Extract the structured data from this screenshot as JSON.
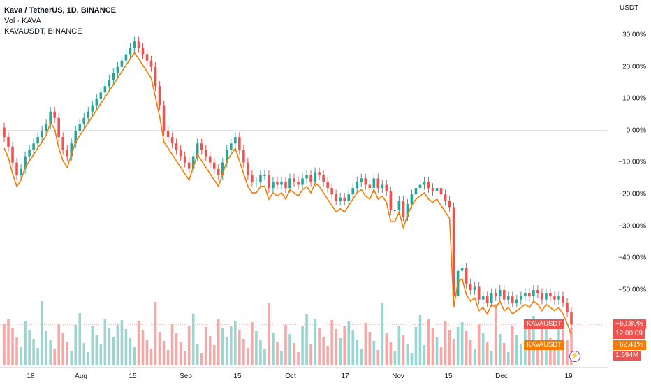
{
  "legend": {
    "title": "Kava / TetherUS, 1D, BINANCE",
    "volume_label": "Vol · KAVA",
    "compare_label": "KAVAUSDT, BINANCE"
  },
  "price_scale": {
    "unit": "USDT",
    "ticks": [
      "30.00%",
      "20.00%",
      "10.00%",
      "0.00%",
      "−10.00%",
      "−20.00%",
      "−30.00%",
      "−40.00%",
      "−50.00%"
    ]
  },
  "time_axis": {
    "labels": [
      "18",
      "Aug",
      "15",
      "Sep",
      "15",
      "Oct",
      "17",
      "Nov",
      "15",
      "Dec",
      "19"
    ]
  },
  "tags": {
    "main_symbol": "KAVAUSDT",
    "main_value": "−60.80%",
    "countdown": "12:00:09",
    "compare_symbol": "KAVAUSDT",
    "compare_value": "−62.41%",
    "volume_value": "1.694M"
  },
  "colors": {
    "up": "#26a69a",
    "down": "#ef5350",
    "compare_line": "#f57c00",
    "volume_up": "#9ad6cf",
    "volume_down": "#f7a8a6",
    "tag_main": "#ef5350",
    "tag_compare": "#f57c00"
  },
  "chart_data": {
    "type": "candlestick",
    "y_unit": "percent change",
    "ylim": [
      -60.8,
      30
    ],
    "main_series": {
      "name": "KAVAUSDT",
      "close_pct": [
        -2,
        -5,
        -10,
        -14,
        -12,
        -8,
        -6,
        -4,
        -2,
        0,
        2,
        6,
        4,
        -2,
        -6,
        -8,
        -4,
        0,
        2,
        4,
        6,
        8,
        10,
        12,
        14,
        16,
        18,
        20,
        22,
        24,
        26,
        28,
        26,
        24,
        22,
        20,
        14,
        8,
        0,
        -2,
        -4,
        -6,
        -8,
        -10,
        -12,
        -8,
        -4,
        -6,
        -8,
        -10,
        -12,
        -14,
        -10,
        -6,
        -4,
        -2,
        -6,
        -10,
        -14,
        -16,
        -16,
        -14,
        -14,
        -18,
        -16,
        -17,
        -16,
        -18,
        -15,
        -16,
        -17,
        -15,
        -14,
        -16,
        -13,
        -14,
        -16,
        -18,
        -20,
        -22,
        -21,
        -22,
        -20,
        -18,
        -16,
        -15,
        -17,
        -18,
        -15,
        -18,
        -17,
        -19,
        -25,
        -25,
        -22,
        -27,
        -23,
        -20,
        -18,
        -17,
        -16,
        -18,
        -19,
        -18,
        -20,
        -22,
        -24,
        -52,
        -44,
        -43,
        -48,
        -50,
        -49,
        -53,
        -52,
        -54,
        -51,
        -52,
        -50,
        -53,
        -52,
        -54,
        -53,
        -52,
        -51,
        -52,
        -50,
        -51,
        -53,
        -51,
        -52,
        -53,
        -52,
        -54,
        -57,
        -60.8
      ]
    },
    "compare_series": {
      "name": "KAVAUSDT",
      "last_value_pct": -62.41
    },
    "volume": {
      "last_value": "1.694M"
    }
  }
}
